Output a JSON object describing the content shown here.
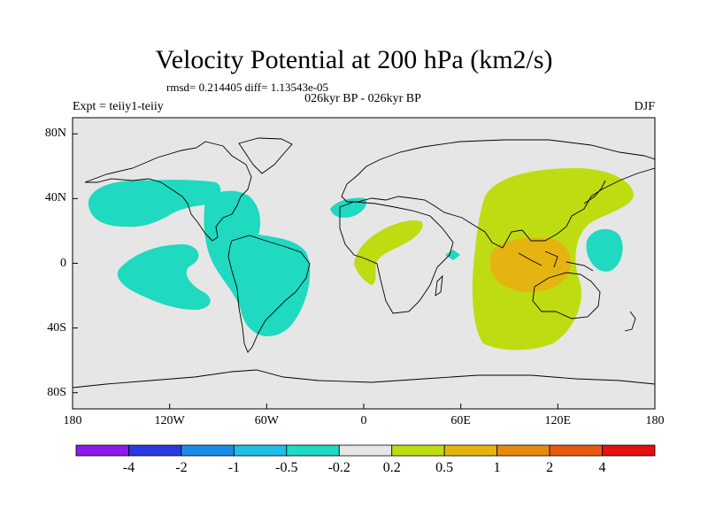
{
  "title": "Velocity Potential at 200 hPa (km2/s)",
  "stats": "rmsd= 0.214405 diff= 1.13543e-05",
  "left_label": "Expt = teiiy1-teiiy",
  "center_label": "026kyr BP - 026kyr BP",
  "right_label": "DJF",
  "map": {
    "lon_range": [
      -180,
      180
    ],
    "lat_range": [
      -90,
      90
    ],
    "background_color": "#e6e6e6",
    "y_ticks": [
      {
        "lat": 80,
        "label": "80N"
      },
      {
        "lat": 40,
        "label": "40N"
      },
      {
        "lat": 0,
        "label": "0"
      },
      {
        "lat": -40,
        "label": "40S"
      },
      {
        "lat": -80,
        "label": "80S"
      }
    ],
    "x_ticks": [
      {
        "lon": -180,
        "label": "180"
      },
      {
        "lon": -120,
        "label": "120W"
      },
      {
        "lon": -60,
        "label": "60W"
      },
      {
        "lon": 0,
        "label": "0"
      },
      {
        "lon": 60,
        "label": "60E"
      },
      {
        "lon": 120,
        "label": "120E"
      },
      {
        "lon": 180,
        "label": "180"
      }
    ]
  },
  "colorbar": {
    "colors": [
      "#8c1aec",
      "#2a3ae0",
      "#1a8ce6",
      "#1fbfe6",
      "#1fd9c0",
      "#e6e6e6",
      "#bfdc12",
      "#e6b410",
      "#e68a10",
      "#e65a10",
      "#e61010"
    ],
    "labels": [
      "-4",
      "-2",
      "-1",
      "-0.5",
      "-0.2",
      "0.2",
      "0.5",
      "1",
      "2",
      "4"
    ]
  }
}
